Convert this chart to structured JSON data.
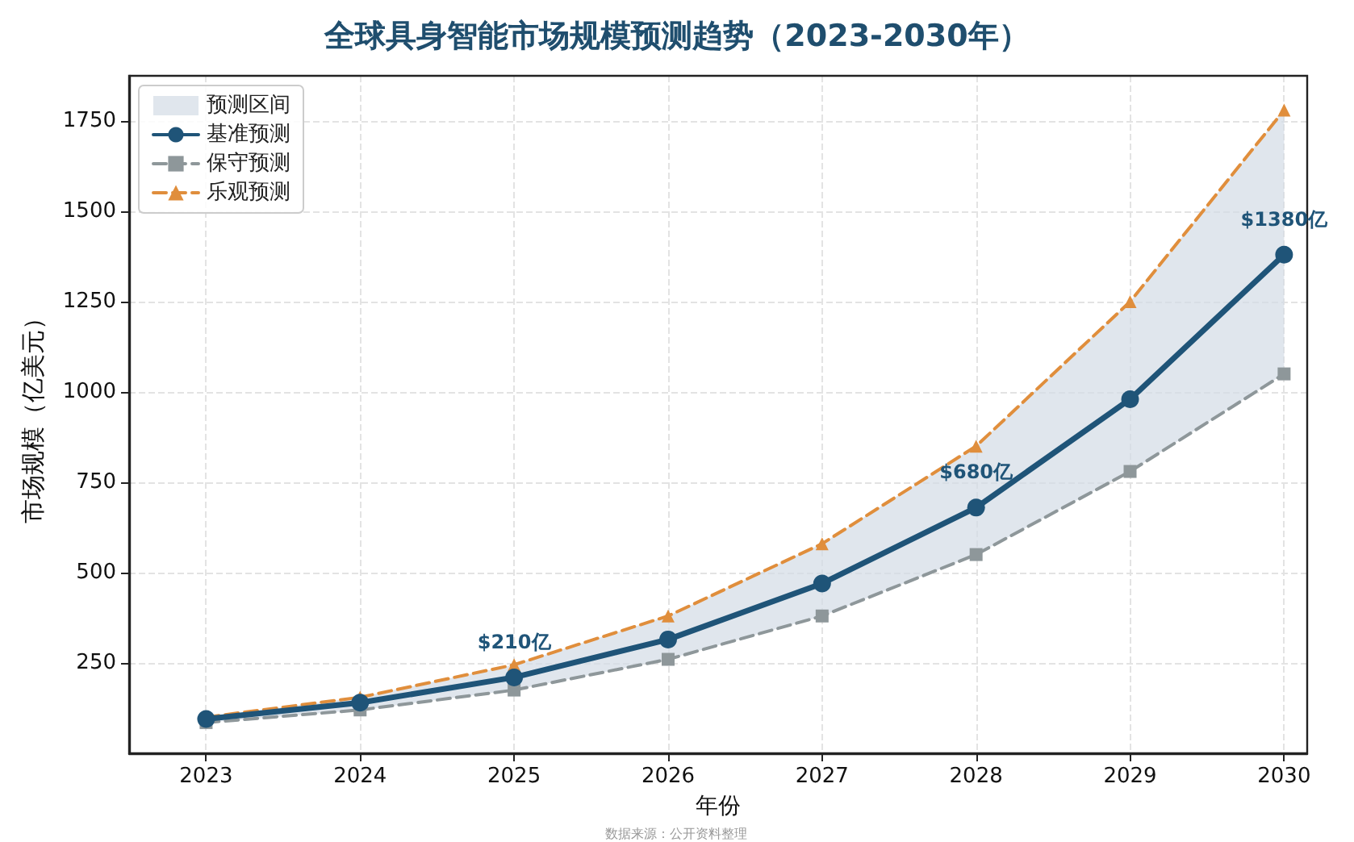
{
  "chart_data": {
    "type": "line",
    "title": "全球具身智能市场规模预测趋势（2023-2030年）",
    "xlabel": "年份",
    "ylabel": "市场规模（亿美元）",
    "x": [
      2023,
      2024,
      2025,
      2026,
      2027,
      2028,
      2029,
      2030
    ],
    "series": [
      {
        "name": "预测区间",
        "type": "area",
        "color": "#d3dce6",
        "values": [
          null,
          null,
          null,
          null,
          null,
          null,
          null,
          null
        ],
        "lower": [
          85,
          120,
          175,
          260,
          380,
          550,
          780,
          1050
        ],
        "upper": [
          100,
          155,
          245,
          380,
          580,
          850,
          1250,
          1780
        ]
      },
      {
        "name": "基准预测",
        "color": "#1f5478",
        "marker": "circle",
        "line_style": "solid",
        "values": [
          95,
          140,
          210,
          315,
          470,
          680,
          980,
          1380
        ]
      },
      {
        "name": "保守预测",
        "color": "#8e979a",
        "marker": "square",
        "line_style": "dashed",
        "values": [
          85,
          120,
          175,
          260,
          380,
          550,
          780,
          1050
        ]
      },
      {
        "name": "乐观预测",
        "color": "#e08e3c",
        "marker": "triangle",
        "line_style": "dashed",
        "values": [
          100,
          155,
          245,
          380,
          580,
          850,
          1250,
          1780
        ]
      }
    ],
    "xlim": [
      2022.5,
      2030.15
    ],
    "xticks": [
      2023,
      2024,
      2025,
      2026,
      2027,
      2028,
      2029,
      2030
    ],
    "ylim": [
      0,
      1875
    ],
    "yticks": [
      250,
      500,
      750,
      1000,
      1250,
      1500,
      1750
    ],
    "grid": true,
    "legend": "top left",
    "annotations": [
      {
        "text": "$210亿",
        "x": 2025,
        "y": 210
      },
      {
        "text": "$680亿",
        "x": 2028,
        "y": 680
      },
      {
        "text": "$1380亿",
        "x": 2030,
        "y": 1380
      },
      "数据来源：公开资料整理"
    ]
  }
}
